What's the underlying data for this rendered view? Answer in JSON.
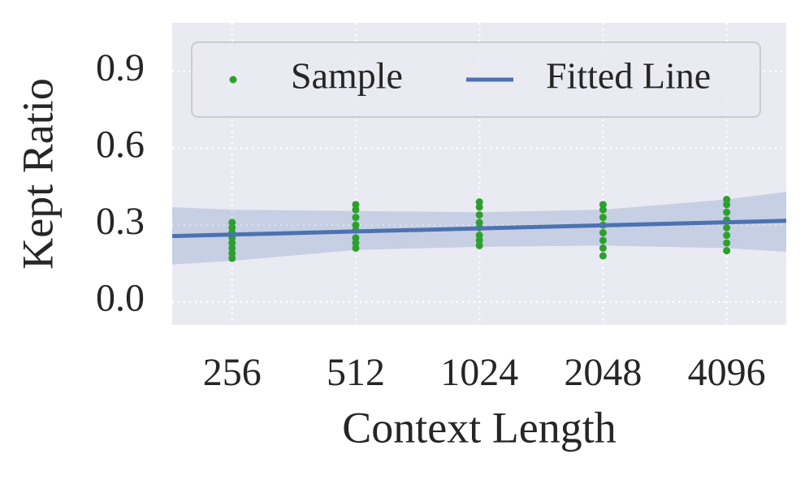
{
  "chart_data": {
    "type": "scatter",
    "x_label": "Context Length",
    "y_label": "Kept Ratio",
    "xlim": [
      183,
      5720
    ],
    "ylim": [
      -0.09,
      1.09
    ],
    "x_log_scale": true,
    "xticks": [
      256,
      512,
      1024,
      2048,
      4096
    ],
    "yticks": [
      {
        "value": 0,
        "label": "0.0"
      },
      0.3,
      0.6,
      0.9
    ],
    "grid": true,
    "legend_position": "top",
    "series": [
      {
        "name": "Sample",
        "color": "#2ca02c",
        "x": [
          256,
          256,
          256,
          256,
          256,
          256,
          256,
          256,
          512,
          512,
          512,
          512,
          512,
          512,
          512,
          512,
          1024,
          1024,
          1024,
          1024,
          1024,
          1024,
          1024,
          1024,
          2048,
          2048,
          2048,
          2048,
          2048,
          2048,
          2048,
          2048,
          4096,
          4096,
          4096,
          4096,
          4096,
          4096,
          4096,
          4096
        ],
        "y": [
          0.17,
          0.19,
          0.21,
          0.23,
          0.25,
          0.27,
          0.29,
          0.31,
          0.21,
          0.23,
          0.25,
          0.28,
          0.3,
          0.33,
          0.36,
          0.38,
          0.22,
          0.24,
          0.26,
          0.29,
          0.31,
          0.34,
          0.37,
          0.39,
          0.18,
          0.21,
          0.24,
          0.27,
          0.3,
          0.33,
          0.36,
          0.38,
          0.2,
          0.23,
          0.26,
          0.29,
          0.32,
          0.35,
          0.38,
          0.4
        ]
      },
      {
        "name": "Fitted Line",
        "color": "#4c72b0",
        "x": [
          183,
          256,
          512,
          1024,
          2048,
          4096,
          5720
        ],
        "y": [
          0.257,
          0.263,
          0.275,
          0.287,
          0.299,
          0.311,
          0.317
        ],
        "band_upper": [
          0.37,
          0.36,
          0.355,
          0.35,
          0.36,
          0.4,
          0.43
        ],
        "band_lower": [
          0.146,
          0.16,
          0.203,
          0.215,
          0.22,
          0.21,
          0.196
        ]
      }
    ]
  }
}
